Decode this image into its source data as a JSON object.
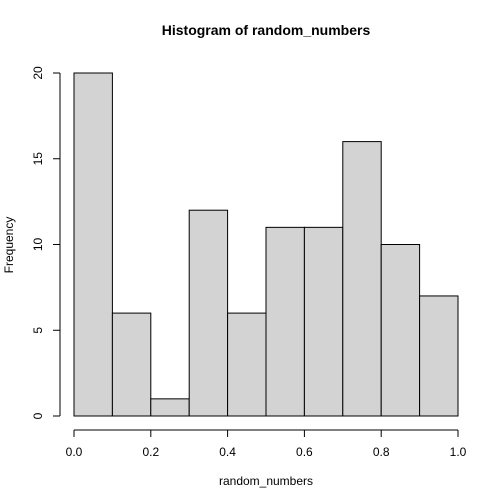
{
  "chart_data": {
    "type": "bar",
    "title": "Histogram of random_numbers",
    "xlabel": "random_numbers",
    "ylabel": "Frequency",
    "bins": [
      {
        "start": 0.0,
        "end": 0.1,
        "count": 20
      },
      {
        "start": 0.1,
        "end": 0.2,
        "count": 6
      },
      {
        "start": 0.2,
        "end": 0.3,
        "count": 1
      },
      {
        "start": 0.3,
        "end": 0.4,
        "count": 12
      },
      {
        "start": 0.4,
        "end": 0.5,
        "count": 6
      },
      {
        "start": 0.5,
        "end": 0.6,
        "count": 11
      },
      {
        "start": 0.6,
        "end": 0.7,
        "count": 11
      },
      {
        "start": 0.7,
        "end": 0.8,
        "count": 16
      },
      {
        "start": 0.8,
        "end": 0.9,
        "count": 10
      },
      {
        "start": 0.9,
        "end": 1.0,
        "count": 7
      }
    ],
    "xlim": [
      0,
      1
    ],
    "ylim": [
      0,
      20
    ],
    "x_ticks": [
      "0.0",
      "0.2",
      "0.4",
      "0.6",
      "0.8",
      "1.0"
    ],
    "y_ticks": [
      "0",
      "5",
      "10",
      "15",
      "20"
    ],
    "grid": false,
    "bar_color": "#d3d3d3",
    "edge_color": "#000000"
  }
}
